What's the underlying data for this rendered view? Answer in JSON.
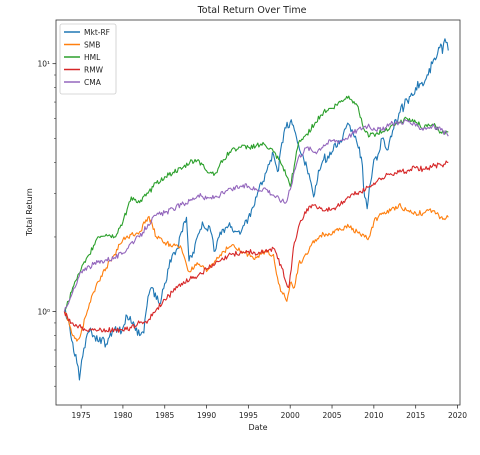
{
  "chart_data": {
    "type": "line",
    "title": "Total Return Over Time",
    "xlabel": "Date",
    "ylabel": "Total Return",
    "xlim": [
      1972.0,
      2020.3
    ],
    "ylim": [
      0.42,
      15.0
    ],
    "yscale": "log",
    "x_ticks": [
      1975,
      1980,
      1985,
      1990,
      1995,
      2000,
      2005,
      2010,
      2015,
      2020
    ],
    "y_ticks": [
      {
        "value": 1,
        "label": "10⁰"
      },
      {
        "value": 10,
        "label": "10¹"
      }
    ],
    "grid": false,
    "legend_position": "top-left",
    "series": [
      {
        "name": "Mkt-RF",
        "color": "#1f77b4",
        "x": [
          1973.0,
          1973.5,
          1974.0,
          1974.5,
          1974.8,
          1975.2,
          1975.6,
          1976.0,
          1976.5,
          1977.0,
          1977.5,
          1978.0,
          1978.5,
          1979.0,
          1979.5,
          1980.0,
          1980.5,
          1981.0,
          1981.5,
          1982.0,
          1982.5,
          1983.0,
          1983.5,
          1984.0,
          1984.5,
          1985.0,
          1985.5,
          1986.0,
          1986.5,
          1987.0,
          1987.6,
          1987.9,
          1988.5,
          1989.0,
          1989.5,
          1990.0,
          1990.5,
          1990.9,
          1991.5,
          1992.0,
          1993.0,
          1994.0,
          1995.0,
          1996.0,
          1997.0,
          1998.0,
          1998.6,
          1999.0,
          1999.5,
          2000.0,
          2000.5,
          2001.0,
          2001.5,
          2002.0,
          2002.5,
          2002.8,
          2003.5,
          2004.0,
          2005.0,
          2006.0,
          2007.0,
          2007.8,
          2008.5,
          2008.9,
          2009.2,
          2009.6,
          2010.0,
          2010.5,
          2011.0,
          2011.7,
          2012.0,
          2013.0,
          2014.0,
          2014.5,
          2015.0,
          2015.5,
          2016.0,
          2016.5,
          2017.0,
          2017.5,
          2018.0,
          2018.2,
          2018.5,
          2018.9
        ],
        "y": [
          1.0,
          0.92,
          0.75,
          0.62,
          0.53,
          0.66,
          0.78,
          0.83,
          0.8,
          0.76,
          0.78,
          0.74,
          0.82,
          0.85,
          0.84,
          0.86,
          0.96,
          0.9,
          0.84,
          0.8,
          0.82,
          1.15,
          1.25,
          1.12,
          1.08,
          1.3,
          1.5,
          1.72,
          1.8,
          2.1,
          2.4,
          1.6,
          1.72,
          2.05,
          2.3,
          2.15,
          2.1,
          1.75,
          2.0,
          2.15,
          2.2,
          2.05,
          2.4,
          2.9,
          3.6,
          4.3,
          3.7,
          4.8,
          5.5,
          5.8,
          5.4,
          4.7,
          4.3,
          3.8,
          3.3,
          2.9,
          3.7,
          4.1,
          4.4,
          4.9,
          5.7,
          5.1,
          4.2,
          2.9,
          2.6,
          3.3,
          4.1,
          4.3,
          5.0,
          4.5,
          5.1,
          6.3,
          7.1,
          7.6,
          8.0,
          8.3,
          8.3,
          9.0,
          10.0,
          10.6,
          12.0,
          11.0,
          12.6,
          11.3
        ]
      },
      {
        "name": "SMB",
        "color": "#ff7f0e",
        "x": [
          1973.0,
          1973.5,
          1974.0,
          1974.5,
          1975.0,
          1975.5,
          1976.0,
          1976.5,
          1977.0,
          1978.0,
          1979.0,
          1980.0,
          1981.0,
          1982.0,
          1983.0,
          1983.5,
          1984.0,
          1985.0,
          1986.0,
          1987.0,
          1987.9,
          1988.5,
          1989.0,
          1990.0,
          1991.0,
          1992.0,
          1993.0,
          1994.0,
          1995.0,
          1996.0,
          1997.0,
          1998.0,
          1998.6,
          1999.0,
          1999.6,
          2000.0,
          2000.5,
          2001.0,
          2002.0,
          2003.0,
          2004.0,
          2005.0,
          2006.0,
          2007.0,
          2008.0,
          2008.9,
          2009.3,
          2010.0,
          2011.0,
          2012.0,
          2013.0,
          2014.0,
          2015.0,
          2016.0,
          2017.0,
          2018.0,
          2018.5,
          2018.9
        ],
        "y": [
          1.0,
          0.92,
          0.8,
          0.76,
          0.82,
          0.95,
          1.08,
          1.2,
          1.32,
          1.5,
          1.7,
          1.95,
          2.05,
          2.1,
          2.4,
          2.25,
          2.0,
          1.9,
          1.85,
          1.8,
          1.45,
          1.5,
          1.55,
          1.45,
          1.6,
          1.75,
          1.85,
          1.75,
          1.7,
          1.65,
          1.75,
          1.7,
          1.3,
          1.2,
          1.1,
          1.3,
          1.25,
          1.55,
          1.7,
          1.95,
          2.05,
          2.05,
          2.15,
          2.2,
          2.1,
          2.0,
          1.95,
          2.3,
          2.5,
          2.55,
          2.7,
          2.55,
          2.5,
          2.5,
          2.55,
          2.4,
          2.35,
          2.4
        ]
      },
      {
        "name": "HML",
        "color": "#2ca02c",
        "x": [
          1973.0,
          1973.5,
          1974.0,
          1974.5,
          1975.0,
          1975.5,
          1976.0,
          1976.5,
          1977.0,
          1978.0,
          1979.0,
          1980.0,
          1981.0,
          1982.0,
          1983.0,
          1984.0,
          1985.0,
          1986.0,
          1987.0,
          1988.0,
          1989.0,
          1990.0,
          1991.0,
          1992.0,
          1993.0,
          1994.0,
          1995.0,
          1996.0,
          1997.0,
          1998.0,
          1999.0,
          1999.6,
          2000.0,
          2000.5,
          2001.0,
          2002.0,
          2003.0,
          2004.0,
          2005.0,
          2006.0,
          2007.0,
          2008.0,
          2009.0,
          2009.5,
          2010.0,
          2011.0,
          2012.0,
          2013.0,
          2014.0,
          2015.0,
          2016.0,
          2017.0,
          2018.0,
          2018.5,
          2018.9
        ],
        "y": [
          1.0,
          1.1,
          1.25,
          1.35,
          1.48,
          1.58,
          1.7,
          1.85,
          2.0,
          2.05,
          2.0,
          2.3,
          2.9,
          2.75,
          3.0,
          3.3,
          3.5,
          3.65,
          3.75,
          4.0,
          4.1,
          3.7,
          3.6,
          4.1,
          4.5,
          4.6,
          4.6,
          4.7,
          4.7,
          4.4,
          3.9,
          3.5,
          3.2,
          3.9,
          4.8,
          5.2,
          5.8,
          6.4,
          6.6,
          7.0,
          7.4,
          6.8,
          5.3,
          5.1,
          5.2,
          5.3,
          5.6,
          5.8,
          6.0,
          5.8,
          5.5,
          5.7,
          5.3,
          5.2,
          5.3
        ]
      },
      {
        "name": "RMW",
        "color": "#d62728",
        "x": [
          1973.0,
          1973.5,
          1974.0,
          1975.0,
          1976.0,
          1977.0,
          1978.0,
          1979.0,
          1980.0,
          1981.0,
          1982.0,
          1983.0,
          1984.0,
          1985.0,
          1986.0,
          1987.0,
          1988.0,
          1989.0,
          1990.0,
          1991.0,
          1992.0,
          1993.0,
          1994.0,
          1995.0,
          1996.0,
          1997.0,
          1998.0,
          1999.0,
          1999.8,
          2000.0,
          2000.5,
          2001.0,
          2002.0,
          2003.0,
          2004.0,
          2005.0,
          2006.0,
          2007.0,
          2008.0,
          2009.0,
          2010.0,
          2011.0,
          2012.0,
          2013.0,
          2014.0,
          2015.0,
          2016.0,
          2017.0,
          2018.0,
          2018.9
        ],
        "y": [
          1.0,
          0.92,
          0.9,
          0.86,
          0.85,
          0.84,
          0.84,
          0.85,
          0.84,
          0.86,
          0.9,
          0.92,
          1.02,
          1.12,
          1.2,
          1.3,
          1.35,
          1.4,
          1.48,
          1.55,
          1.62,
          1.7,
          1.72,
          1.75,
          1.7,
          1.75,
          1.8,
          1.5,
          1.25,
          1.4,
          1.9,
          2.2,
          2.6,
          2.7,
          2.55,
          2.6,
          2.7,
          2.9,
          3.0,
          3.1,
          3.3,
          3.45,
          3.6,
          3.65,
          3.7,
          3.8,
          3.75,
          3.85,
          3.9,
          4.0
        ]
      },
      {
        "name": "CMA",
        "color": "#9467bd",
        "x": [
          1973.0,
          1973.5,
          1974.0,
          1974.5,
          1975.0,
          1975.5,
          1976.0,
          1977.0,
          1978.0,
          1979.0,
          1980.0,
          1981.0,
          1982.0,
          1983.0,
          1984.0,
          1985.0,
          1986.0,
          1987.0,
          1988.0,
          1989.0,
          1990.0,
          1991.0,
          1992.0,
          1993.0,
          1994.0,
          1995.0,
          1996.0,
          1997.0,
          1998.0,
          1999.0,
          1999.5,
          2000.0,
          2000.5,
          2001.0,
          2002.0,
          2003.0,
          2004.0,
          2005.0,
          2006.0,
          2007.0,
          2008.0,
          2009.0,
          2010.0,
          2011.0,
          2012.0,
          2013.0,
          2014.0,
          2015.0,
          2016.0,
          2017.0,
          2018.0,
          2018.9
        ],
        "y": [
          1.0,
          1.08,
          1.2,
          1.3,
          1.45,
          1.5,
          1.52,
          1.58,
          1.62,
          1.65,
          1.72,
          1.9,
          2.0,
          2.25,
          2.45,
          2.5,
          2.6,
          2.7,
          2.8,
          2.95,
          2.85,
          2.9,
          3.0,
          3.1,
          3.2,
          3.2,
          3.1,
          3.15,
          2.95,
          2.8,
          2.75,
          3.1,
          3.7,
          4.2,
          4.6,
          4.4,
          4.7,
          4.9,
          4.9,
          5.1,
          5.4,
          5.6,
          5.5,
          5.4,
          5.7,
          5.8,
          5.9,
          5.6,
          5.5,
          5.6,
          5.4,
          5.1
        ]
      }
    ]
  }
}
